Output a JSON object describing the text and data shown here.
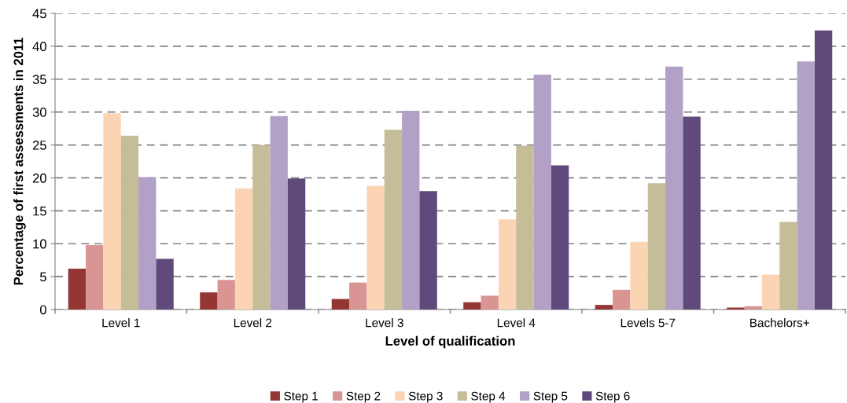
{
  "chart_data": {
    "type": "bar",
    "xlabel": "Level of qualification",
    "ylabel": "Percentage of first assessments in 2011",
    "categories": [
      "Level 1",
      "Level 2",
      "Level 3",
      "Level 4",
      "Levels 5-7",
      "Bachelors+"
    ],
    "series": [
      {
        "name": "Step 1",
        "color": "#943634",
        "values": [
          6.2,
          2.6,
          1.6,
          1.1,
          0.7,
          0.3
        ]
      },
      {
        "name": "Step 2",
        "color": "#d99594",
        "values": [
          9.8,
          4.5,
          4.1,
          2.1,
          3.0,
          0.5
        ]
      },
      {
        "name": "Step 3",
        "color": "#fbd4b4",
        "values": [
          29.8,
          18.4,
          18.8,
          13.7,
          10.3,
          5.3
        ]
      },
      {
        "name": "Step 4",
        "color": "#c4bd97",
        "values": [
          26.4,
          25.0,
          27.3,
          24.9,
          19.2,
          13.3
        ]
      },
      {
        "name": "Step 5",
        "color": "#b2a1c7",
        "values": [
          20.1,
          29.4,
          30.2,
          35.7,
          36.9,
          37.7
        ]
      },
      {
        "name": "Step 6",
        "color": "#604a7b",
        "values": [
          7.7,
          19.9,
          18.0,
          21.9,
          29.3,
          42.4
        ]
      }
    ],
    "ylim": [
      0,
      45
    ],
    "yticks": [
      0,
      5,
      10,
      15,
      20,
      25,
      30,
      35,
      40,
      45
    ],
    "grid": "y",
    "legend": "bottom"
  }
}
